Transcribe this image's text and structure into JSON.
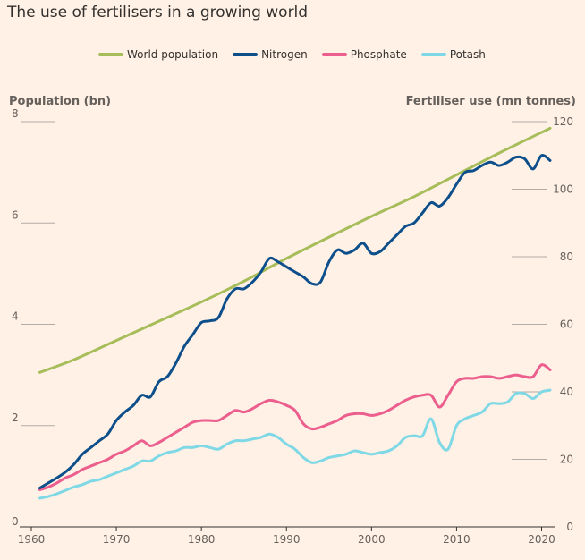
{
  "title": "The use of fertilisers in a growing world",
  "chart_data": {
    "type": "line",
    "title": "The use of fertilisers in a growing world",
    "ylabel_left": "Population (bn)",
    "ylabel_right": "Fertiliser use (mn tonnes)",
    "xlim": [
      1960,
      2021
    ],
    "ylim_left": [
      0,
      8
    ],
    "ylim_right": [
      0,
      120
    ],
    "x_ticks": [
      1960,
      1970,
      1980,
      1990,
      2000,
      2010,
      2020
    ],
    "y_ticks_left": [
      0,
      2,
      4,
      6,
      8
    ],
    "y_ticks_right": [
      0,
      20,
      40,
      60,
      80,
      100,
      120
    ],
    "legend_position": "top",
    "grid": "horizontal",
    "series": [
      {
        "name": "World population",
        "axis": "left",
        "color": "#a6bd5a",
        "x": [
          1961,
          1965,
          1970,
          1975,
          1980,
          1985,
          1990,
          1995,
          2000,
          2005,
          2010,
          2015,
          2021
        ],
        "y": [
          3.05,
          3.3,
          3.68,
          4.06,
          4.44,
          4.85,
          5.3,
          5.72,
          6.13,
          6.52,
          6.95,
          7.38,
          7.87
        ]
      },
      {
        "name": "Nitrogen",
        "axis": "right",
        "color": "#0d4f8b",
        "x": [
          1961,
          1962,
          1963,
          1964,
          1965,
          1966,
          1967,
          1968,
          1969,
          1970,
          1971,
          1972,
          1973,
          1974,
          1975,
          1976,
          1977,
          1978,
          1979,
          1980,
          1981,
          1982,
          1983,
          1984,
          1985,
          1986,
          1987,
          1988,
          1989,
          1990,
          1991,
          1992,
          1993,
          1994,
          1995,
          1996,
          1997,
          1998,
          1999,
          2000,
          2001,
          2002,
          2003,
          2004,
          2005,
          2006,
          2007,
          2008,
          2009,
          2010,
          2011,
          2012,
          2013,
          2014,
          2015,
          2016,
          2017,
          2018,
          2019,
          2020,
          2021
        ],
        "y": [
          11.5,
          13,
          14.5,
          16.2,
          18.5,
          21.5,
          23.5,
          25.5,
          27.5,
          31.5,
          34,
          36,
          39,
          38.5,
          43,
          44.5,
          48.5,
          53.5,
          57,
          60.5,
          61,
          62,
          67.5,
          70.5,
          70.5,
          72.5,
          75.5,
          79.5,
          78.5,
          77,
          75.5,
          74,
          72,
          72.5,
          78.5,
          82,
          81,
          82,
          84,
          81,
          81.5,
          84,
          86.5,
          89,
          90,
          93,
          96,
          95,
          97.5,
          101.5,
          105,
          105.5,
          107,
          108,
          107,
          108,
          109.5,
          109,
          106,
          110,
          108.5
        ]
      },
      {
        "name": "Phosphate",
        "axis": "right",
        "color": "#eb5e8d",
        "x": [
          1961,
          1962,
          1963,
          1964,
          1965,
          1966,
          1967,
          1968,
          1969,
          1970,
          1971,
          1972,
          1973,
          1974,
          1975,
          1976,
          1977,
          1978,
          1979,
          1980,
          1981,
          1982,
          1983,
          1984,
          1985,
          1986,
          1987,
          1988,
          1989,
          1990,
          1991,
          1992,
          1993,
          1994,
          1995,
          1996,
          1997,
          1998,
          1999,
          2000,
          2001,
          2002,
          2003,
          2004,
          2005,
          2006,
          2007,
          2008,
          2009,
          2010,
          2011,
          2012,
          2013,
          2014,
          2015,
          2016,
          2017,
          2018,
          2019,
          2020,
          2021
        ],
        "y": [
          11,
          11.8,
          13,
          14.5,
          15.5,
          17,
          18,
          19,
          20,
          21.5,
          22.5,
          24,
          25.5,
          24,
          25,
          26.5,
          28,
          29.5,
          31,
          31.5,
          31.5,
          31.5,
          33,
          34.5,
          34,
          35,
          36.5,
          37.5,
          37,
          36,
          34.5,
          30.5,
          29,
          29.5,
          30.5,
          31.5,
          33,
          33.5,
          33.5,
          33,
          33.5,
          34.5,
          36,
          37.5,
          38.5,
          39,
          39,
          35.5,
          39,
          43,
          44,
          44,
          44.5,
          44.5,
          44,
          44.5,
          45,
          44.5,
          44.5,
          48,
          46.5
        ]
      },
      {
        "name": "Potash",
        "axis": "right",
        "color": "#7fd8e5",
        "x": [
          1961,
          1962,
          1963,
          1964,
          1965,
          1966,
          1967,
          1968,
          1969,
          1970,
          1971,
          1972,
          1973,
          1974,
          1975,
          1976,
          1977,
          1978,
          1979,
          1980,
          1981,
          1982,
          1983,
          1984,
          1985,
          1986,
          1987,
          1988,
          1989,
          1990,
          1991,
          1992,
          1993,
          1994,
          1995,
          1996,
          1997,
          1998,
          1999,
          2000,
          2001,
          2002,
          2003,
          2004,
          2005,
          2006,
          2007,
          2008,
          2009,
          2010,
          2011,
          2012,
          2013,
          2014,
          2015,
          2016,
          2017,
          2018,
          2019,
          2020,
          2021
        ],
        "y": [
          8.5,
          9,
          9.8,
          10.8,
          11.8,
          12.5,
          13.5,
          14,
          15,
          16,
          17,
          18,
          19.5,
          19.5,
          21,
          22,
          22.5,
          23.5,
          23.5,
          24,
          23.5,
          23,
          24.5,
          25.5,
          25.5,
          26,
          26.5,
          27.5,
          26.5,
          24.5,
          23,
          20.5,
          19,
          19.5,
          20.5,
          21,
          21.5,
          22.5,
          22,
          21.5,
          22,
          22.5,
          24,
          26.5,
          27,
          27,
          32,
          25,
          23,
          30,
          32,
          33,
          34,
          36.5,
          36.5,
          37,
          39.5,
          39.5,
          38,
          40,
          40.5
        ]
      }
    ]
  }
}
